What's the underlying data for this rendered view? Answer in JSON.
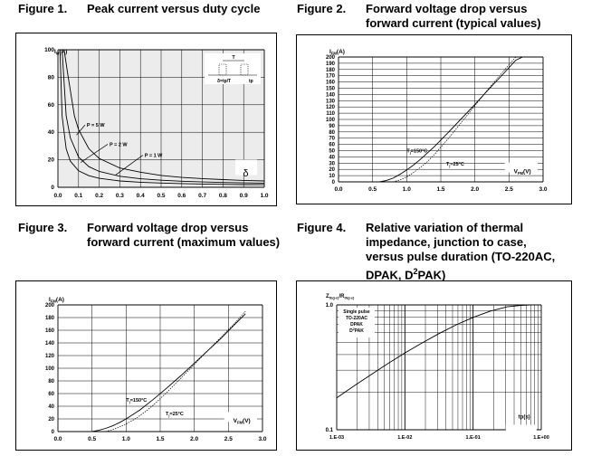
{
  "figures": [
    {
      "caption_num": "Figure 1.",
      "caption_lines": [
        "Peak current versus duty cycle"
      ],
      "chart_data": {
        "type": "line",
        "ylabel_main": "I",
        "ylabel_sub": "M",
        "ylabel_unit": "(A)",
        "xlabel": "δ",
        "x_ticks": [
          "0.0",
          "0.1",
          "0.2",
          "0.3",
          "0.4",
          "0.5",
          "0.6",
          "0.7",
          "0.8",
          "0.9",
          "1.0"
        ],
        "y_ticks": [
          "0",
          "20",
          "40",
          "60",
          "80",
          "100"
        ],
        "xlim": [
          0,
          1
        ],
        "ylim": [
          0,
          100
        ],
        "grid": true,
        "series": [
          {
            "name": "P = 5 W",
            "x": [
              0.03,
              0.05,
              0.08,
              0.1,
              0.15,
              0.2,
              0.3,
              0.4,
              0.5,
              0.6,
              0.7,
              0.8,
              0.9,
              1.0
            ],
            "y": [
              100,
              80,
              52,
              42,
              28,
              21,
              14,
              11,
              8.6,
              7.2,
              6.3,
              5.6,
              5.0,
              4.6
            ]
          },
          {
            "name": "P = 2 W",
            "x": [
              0.02,
              0.04,
              0.06,
              0.1,
              0.15,
              0.2,
              0.3,
              0.4,
              0.5,
              0.6,
              0.7,
              0.8,
              0.9,
              1.0
            ],
            "y": [
              100,
              52,
              36,
              22,
              15,
              11.5,
              8,
              6.2,
              5.1,
              4.4,
              3.9,
              3.5,
              3.2,
              3.0
            ]
          },
          {
            "name": "P = 1 W",
            "x": [
              0.01,
              0.02,
              0.04,
              0.06,
              0.1,
              0.15,
              0.2,
              0.3,
              0.4,
              0.5,
              0.6,
              0.7,
              0.8,
              0.9,
              1.0
            ],
            "y": [
              100,
              52,
              28,
              19,
              12,
              8.4,
              6.5,
              4.6,
              3.7,
              3.1,
              2.7,
              2.4,
              2.2,
              2.0,
              1.9
            ]
          }
        ],
        "inset": {
          "label_t": "T",
          "label_delta": "δ=tp/T",
          "label_tp": "tp"
        }
      }
    },
    {
      "caption_num": "Figure 2.",
      "caption_lines": [
        "Forward voltage drop versus",
        "forward current (typical values)"
      ],
      "chart_data": {
        "type": "line",
        "ylabel_main": "I",
        "ylabel_sub": "FM",
        "ylabel_unit": "(A)",
        "xlabel_main": "V",
        "xlabel_sub": "FM",
        "xlabel_unit": "(V)",
        "x_ticks": [
          "0.0",
          "0.5",
          "1.0",
          "1.5",
          "2.0",
          "2.5",
          "3.0"
        ],
        "y_ticks": [
          "0",
          "10",
          "20",
          "30",
          "40",
          "50",
          "60",
          "70",
          "80",
          "90",
          "100",
          "110",
          "120",
          "130",
          "140",
          "150",
          "160",
          "170",
          "180",
          "190",
          "200"
        ],
        "xlim": [
          0,
          3
        ],
        "ylim": [
          0,
          200
        ],
        "grid": true,
        "series": [
          {
            "name": "Tj=150°C",
            "dash": false,
            "x": [
              0.6,
              0.7,
              0.8,
              0.9,
              1.0,
              1.1,
              1.2,
              1.4,
              1.6,
              1.8,
              2.0,
              2.2,
              2.4,
              2.6,
              2.7
            ],
            "y": [
              0,
              2,
              6,
              12,
              19,
              27,
              36,
              56,
              78,
              101,
              124,
              148,
              171,
              195,
              200
            ]
          },
          {
            "name": "Tj=25°C",
            "dash": true,
            "x": [
              0.8,
              0.9,
              1.0,
              1.1,
              1.2,
              1.3,
              1.4,
              1.6,
              1.8,
              2.0,
              2.2,
              2.4,
              2.6,
              2.8
            ],
            "y": [
              0,
              3,
              8,
              15,
              23,
              32,
              43,
              68,
              95,
              122,
              149,
              175,
              200,
              200
            ]
          }
        ],
        "labels": {
          "hot_main": "T",
          "hot_sub": "j",
          "hot_rest": "=150°C",
          "cold_main": "T",
          "cold_sub": "j",
          "cold_rest": "=25°C"
        }
      }
    },
    {
      "caption_num": "Figure 3.",
      "caption_lines": [
        "Forward voltage drop versus",
        "forward current (maximum values)"
      ],
      "chart_data": {
        "type": "line",
        "ylabel_main": "I",
        "ylabel_sub": "FM",
        "ylabel_unit": "(A)",
        "xlabel_main": "V",
        "xlabel_sub": "FM",
        "xlabel_unit": "(V)",
        "x_ticks": [
          "0.0",
          "0.5",
          "1.0",
          "1.5",
          "2.0",
          "2.5",
          "3.0"
        ],
        "y_ticks": [
          "0",
          "20",
          "40",
          "60",
          "80",
          "100",
          "120",
          "140",
          "160",
          "180",
          "200"
        ],
        "xlim": [
          0,
          3
        ],
        "ylim": [
          0,
          200
        ],
        "grid": true,
        "series": [
          {
            "name": "Tj=150°C",
            "dash": false,
            "x": [
              0.5,
              0.6,
              0.7,
              0.8,
              0.9,
              1.0,
              1.1,
              1.2,
              1.4,
              1.6,
              1.8,
              2.0,
              2.2,
              2.4,
              2.6,
              2.75
            ],
            "y": [
              0,
              2,
              5,
              9,
              14,
              20,
              27,
              34,
              51,
              69,
              88,
              108,
              128,
              148,
              170,
              186
            ]
          },
          {
            "name": "Tj=25°C",
            "dash": true,
            "x": [
              0.7,
              0.8,
              0.9,
              1.0,
              1.1,
              1.2,
              1.3,
              1.4,
              1.6,
              1.8,
              2.0,
              2.2,
              2.4,
              2.6,
              2.75
            ],
            "y": [
              0,
              3,
              7,
              12,
              18,
              25,
              33,
              42,
              62,
              84,
              106,
              128,
              150,
              172,
              190
            ]
          }
        ],
        "labels": {
          "hot_main": "T",
          "hot_sub": "j",
          "hot_rest": "=150°C",
          "cold_main": "T",
          "cold_sub": "j",
          "cold_rest": "=25°C"
        }
      }
    },
    {
      "caption_num": "Figure 4.",
      "caption_lines": [
        "Relative variation of thermal",
        "impedance, junction to case,",
        "versus pulse duration (TO-220AC,",
        "DPAK, D"
      ],
      "caption_last_sup": "2",
      "caption_last_tail": "PAK)",
      "chart_data": {
        "type": "line",
        "ylabel_a": "Z",
        "ylabel_a_sub": "th(j-c)",
        "ylabel_b": "/R",
        "ylabel_b_sub": "th(j-c)",
        "xlabel": "tp(s)",
        "x_ticks": [
          "1.E-03",
          "1.E-02",
          "1.E-01",
          "1.E+00"
        ],
        "y_ticks": [
          "0.1",
          "1.0"
        ],
        "xlim": [
          -3,
          0
        ],
        "ylim": [
          -1,
          0
        ],
        "xscale": "log",
        "yscale": "log",
        "grid": true,
        "legend_lines": [
          "Single pulse",
          "TO-220AC",
          "DPAK",
          "PAK"
        ],
        "legend_d_sup": "2",
        "series": [
          {
            "name": "Single pulse",
            "x": [
              -3,
              -2.75,
              -2.5,
              -2.25,
              -2,
              -1.75,
              -1.5,
              -1.25,
              -1,
              -0.75,
              -0.5,
              -0.3,
              -0.15,
              0
            ],
            "y": [
              -0.745,
              -0.65,
              -0.56,
              -0.47,
              -0.385,
              -0.305,
              -0.23,
              -0.16,
              -0.1,
              -0.05,
              -0.015,
              -0.004,
              0,
              0
            ]
          }
        ]
      }
    }
  ]
}
